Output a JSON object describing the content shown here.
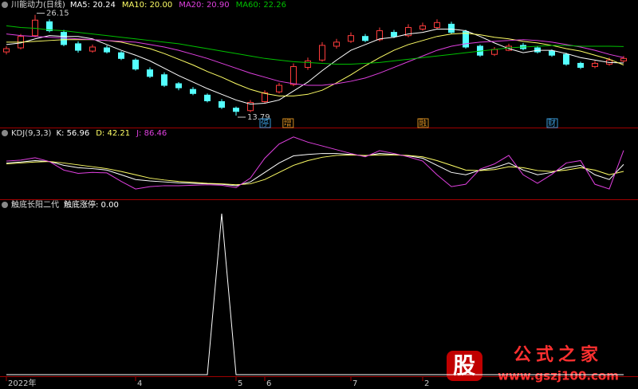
{
  "chart_data": [
    {
      "type": "candlestick",
      "title": "川能动力(日线)",
      "categories": [
        "2022年",
        null,
        null,
        null,
        null,
        null,
        null,
        null,
        null,
        "4",
        null,
        null,
        null,
        null,
        null,
        null,
        "5",
        null,
        "6",
        null,
        null,
        null,
        null,
        null,
        "7",
        null,
        null,
        null,
        null,
        "2",
        null,
        null,
        null,
        null,
        null,
        null,
        null,
        null,
        null,
        null,
        null,
        null,
        null,
        null
      ],
      "open": [
        21.6,
        22.1,
        23.6,
        25.3,
        24.0,
        22.6,
        21.7,
        22.1,
        21.5,
        20.6,
        19.4,
        18.8,
        17.7,
        17.0,
        16.3,
        15.5,
        14.7,
        14.4,
        15.5,
        16.7,
        17.6,
        19.7,
        20.6,
        22.3,
        22.9,
        23.5,
        23.1,
        24.0,
        23.6,
        24.4,
        24.6,
        25.0,
        24.1,
        22.3,
        21.3,
        21.8,
        22.4,
        22.1,
        21.7,
        21.3,
        20.2,
        19.8,
        20.1,
        20.5
      ],
      "close": [
        22.0,
        23.5,
        25.5,
        24.2,
        22.5,
        21.8,
        22.2,
        21.6,
        20.8,
        19.5,
        18.6,
        17.5,
        17.2,
        16.5,
        15.6,
        14.8,
        14.3,
        15.4,
        16.6,
        17.5,
        19.8,
        20.5,
        22.4,
        22.8,
        23.6,
        23.0,
        24.2,
        23.5,
        24.6,
        24.8,
        25.2,
        24.0,
        22.2,
        21.2,
        21.9,
        22.3,
        22.0,
        21.6,
        21.2,
        20.1,
        19.7,
        20.2,
        20.6,
        20.8
      ],
      "high": [
        22.3,
        23.8,
        26.15,
        25.6,
        24.3,
        22.9,
        22.5,
        22.4,
        21.7,
        20.8,
        19.7,
        19.1,
        17.9,
        17.3,
        16.5,
        15.8,
        14.9,
        15.7,
        16.9,
        17.8,
        20.2,
        20.9,
        22.8,
        23.2,
        24.0,
        23.8,
        24.6,
        24.3,
        25.0,
        25.2,
        25.6,
        25.3,
        24.3,
        22.5,
        22.2,
        22.6,
        22.7,
        22.3,
        21.9,
        21.5,
        20.4,
        20.5,
        20.9,
        21.1
      ],
      "low": [
        21.3,
        21.9,
        23.4,
        24.0,
        22.3,
        21.5,
        21.5,
        21.4,
        20.6,
        19.3,
        18.4,
        17.3,
        16.9,
        16.3,
        15.4,
        14.6,
        13.79,
        14.2,
        15.3,
        16.5,
        17.4,
        19.4,
        20.4,
        22.0,
        22.7,
        22.8,
        22.9,
        23.3,
        23.4,
        24.2,
        24.4,
        23.8,
        22.0,
        21.0,
        21.1,
        21.7,
        21.8,
        21.4,
        21.0,
        19.9,
        19.5,
        19.6,
        19.9,
        20.3
      ],
      "up_color": "#ff3c3c",
      "down_color": "#54ffff",
      "ylim": [
        13.3,
        26.6
      ],
      "series": [
        {
          "label": "MA5: 20.24",
          "color": "#ffffff",
          "values": [
            22.5,
            22.7,
            23.2,
            23.6,
            23.5,
            23.5,
            23.2,
            22.5,
            21.8,
            21.2,
            20.5,
            19.6,
            18.7,
            17.9,
            17.1,
            16.4,
            15.7,
            15.2,
            15.3,
            15.7,
            16.8,
            17.9,
            19.3,
            20.6,
            21.8,
            22.5,
            23.2,
            23.4,
            23.8,
            24.0,
            24.4,
            24.4,
            24.2,
            23.5,
            22.7,
            22.0,
            21.5,
            21.8,
            21.8,
            21.4,
            20.9,
            20.6,
            20.3,
            20.24
          ]
        },
        {
          "label": "MA10: 20.00",
          "color": "#ffff66",
          "values": [
            22.8,
            22.8,
            22.9,
            23.0,
            23.1,
            23.1,
            23.1,
            23.0,
            22.8,
            22.4,
            22.0,
            21.4,
            20.7,
            20.0,
            19.2,
            18.5,
            17.7,
            17.0,
            16.5,
            16.2,
            16.2,
            16.4,
            16.9,
            17.8,
            18.8,
            19.9,
            20.9,
            21.8,
            22.5,
            23.0,
            23.5,
            23.8,
            23.9,
            23.7,
            23.4,
            23.2,
            22.9,
            22.7,
            22.4,
            22.0,
            21.7,
            21.2,
            20.7,
            20.0
          ]
        },
        {
          "label": "MA20: 20.90",
          "color": "#e040e0",
          "values": [
            23.8,
            23.6,
            23.5,
            23.4,
            23.3,
            23.2,
            23.1,
            23.0,
            22.9,
            22.8,
            22.5,
            22.2,
            21.8,
            21.3,
            20.8,
            20.2,
            19.6,
            19.0,
            18.5,
            18.0,
            17.7,
            17.5,
            17.5,
            17.7,
            18.0,
            18.4,
            19.0,
            19.7,
            20.4,
            21.1,
            21.8,
            22.3,
            22.6,
            22.8,
            22.9,
            23.0,
            23.1,
            23.0,
            22.8,
            22.5,
            22.2,
            21.8,
            21.3,
            20.9
          ]
        },
        {
          "label": "MA60: 22.26",
          "color": "#00c000",
          "values": [
            24.8,
            24.6,
            24.5,
            24.3,
            24.2,
            24.0,
            23.8,
            23.6,
            23.4,
            23.2,
            23.0,
            22.8,
            22.6,
            22.3,
            22.0,
            21.7,
            21.4,
            21.1,
            20.8,
            20.6,
            20.4,
            20.3,
            20.2,
            20.1,
            20.1,
            20.2,
            20.3,
            20.5,
            20.7,
            20.9,
            21.1,
            21.3,
            21.5,
            21.7,
            21.9,
            22.1,
            22.2,
            22.3,
            22.4,
            22.4,
            22.3,
            22.3,
            22.3,
            22.26
          ]
        }
      ],
      "annotations": [
        {
          "text": "26.15",
          "value": 26.15
        },
        {
          "text": "13.79",
          "value": 13.79
        }
      ],
      "events": [
        {
          "text": "停",
          "color": "#3a9ad9"
        },
        {
          "text": "增",
          "color": "#d08a20"
        },
        {
          "text": "融",
          "color": "#d08a20"
        },
        {
          "text": "财",
          "color": "#3a9ad9"
        }
      ]
    },
    {
      "type": "line",
      "title": "KDJ(9,3,3)",
      "ylim": [
        -10,
        118
      ],
      "series": [
        {
          "label": "K: 56.96",
          "color": "#ffffff",
          "values": [
            60,
            62,
            65,
            63,
            55,
            50,
            48,
            45,
            35,
            25,
            22,
            20,
            18,
            17,
            16,
            15,
            12,
            20,
            40,
            60,
            75,
            78,
            80,
            80,
            78,
            75,
            80,
            78,
            75,
            70,
            55,
            40,
            35,
            45,
            50,
            60,
            45,
            35,
            40,
            50,
            55,
            35,
            25,
            56.96
          ]
        },
        {
          "label": "D: 42.21",
          "color": "#ffff66",
          "values": [
            58,
            60,
            62,
            63,
            60,
            56,
            52,
            48,
            42,
            35,
            28,
            24,
            21,
            19,
            17,
            16,
            14,
            16,
            25,
            40,
            55,
            65,
            72,
            76,
            77,
            76,
            77,
            77,
            76,
            73,
            65,
            55,
            45,
            44,
            46,
            52,
            50,
            44,
            42,
            45,
            50,
            45,
            35,
            42.21
          ]
        },
        {
          "label": "J: 86.46",
          "color": "#e040e0",
          "values": [
            64,
            66,
            71,
            63,
            45,
            38,
            40,
            39,
            21,
            5,
            10,
            12,
            12,
            13,
            14,
            13,
            8,
            28,
            70,
            100,
            115,
            104,
            96,
            88,
            80,
            73,
            86,
            80,
            73,
            64,
            35,
            10,
            15,
            47,
            58,
            76,
            35,
            17,
            36,
            60,
            65,
            15,
            5,
            86.46
          ]
        }
      ]
    },
    {
      "type": "line",
      "title": "触底长阳二代",
      "ylim": [
        0,
        1.02
      ],
      "series": [
        {
          "label": "触底涨停: 0.00",
          "color": "#ffffff",
          "values": [
            0,
            0,
            0,
            0,
            0,
            0,
            0,
            0,
            0,
            0,
            0,
            0,
            0,
            0,
            0,
            1,
            0,
            0,
            0,
            0,
            0,
            0,
            0,
            0,
            0,
            0,
            0,
            0,
            0,
            0,
            0,
            0,
            0,
            0,
            0,
            0,
            0,
            0,
            0,
            0,
            0,
            0,
            0,
            0
          ]
        }
      ]
    }
  ],
  "watermark": {
    "logo": "股",
    "name": "公式之家",
    "url": "www.gszj100.com"
  }
}
